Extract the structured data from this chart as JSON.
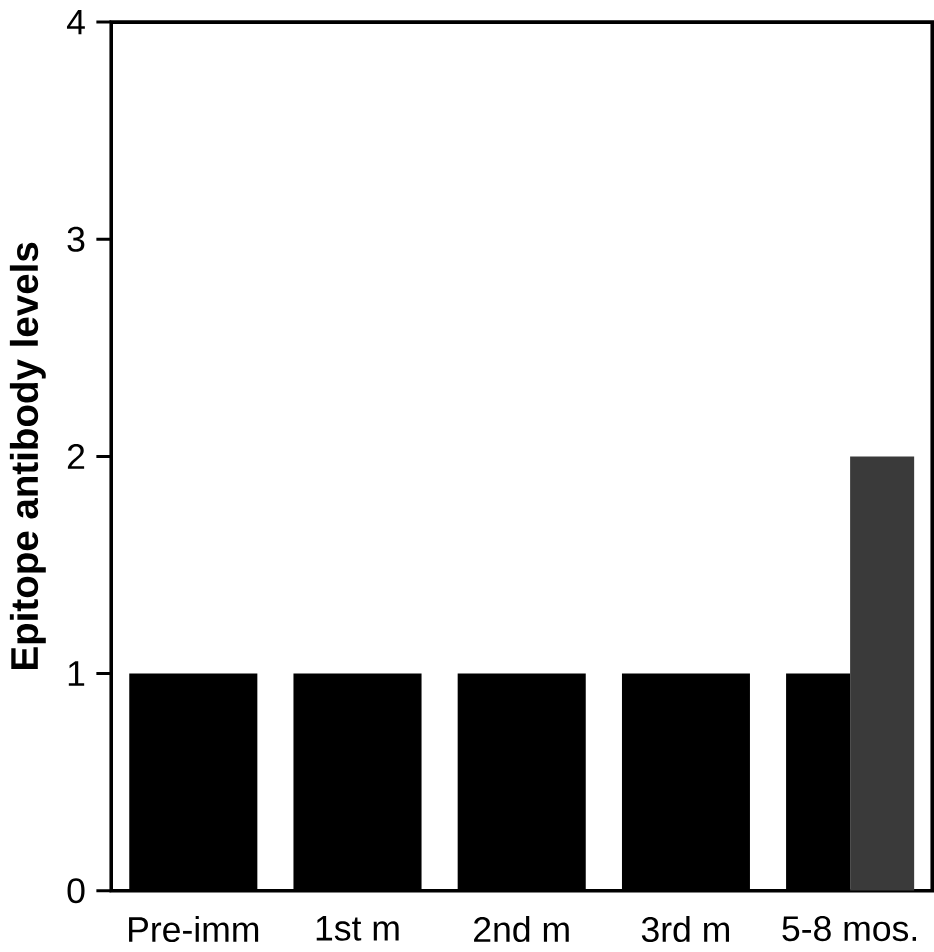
{
  "chart_data": {
    "type": "bar",
    "ylabel": "Epitope  antibody  levels",
    "categories": [
      "Pre-imm",
      "1st m",
      "2nd m",
      "3rd m",
      "5-8  mos."
    ],
    "series": [
      {
        "color": "#000000",
        "values": [
          1,
          1,
          1,
          1,
          1
        ]
      },
      {
        "color": "#3a3a3a",
        "values": [
          null,
          null,
          null,
          null,
          2
        ]
      }
    ],
    "ylim": [
      0,
      4
    ],
    "yticks": [
      0,
      1,
      2,
      3,
      4
    ]
  }
}
